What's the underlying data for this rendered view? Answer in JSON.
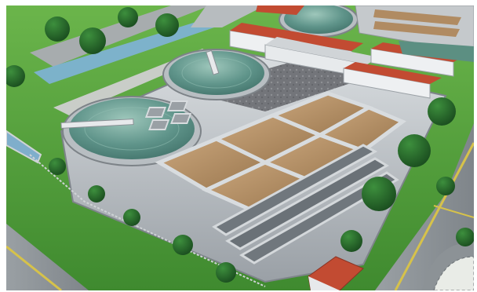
{
  "scene": {
    "subject": "aerial-3d-rendering-wastewater-treatment-plant",
    "colors": {
      "grass": "#4f9a3a",
      "grass_light": "#69b24a",
      "road": "#8f959a",
      "road_line": "#d6c24a",
      "water_clear": "#5c8f82",
      "water_clear_highlight": "#88b1a6",
      "water_muddy": "#b08b62",
      "water_muddy_light": "#c7a57c",
      "concrete": "#c8ccd0",
      "concrete_dark": "#8b9096",
      "sludge": "#6f7075",
      "roof_red": "#c24b32",
      "building_white": "#eef0f2",
      "tree_dark": "#1f5b24",
      "tree_mid": "#2d7a31",
      "blue_channel": "#7fb2d9"
    }
  }
}
